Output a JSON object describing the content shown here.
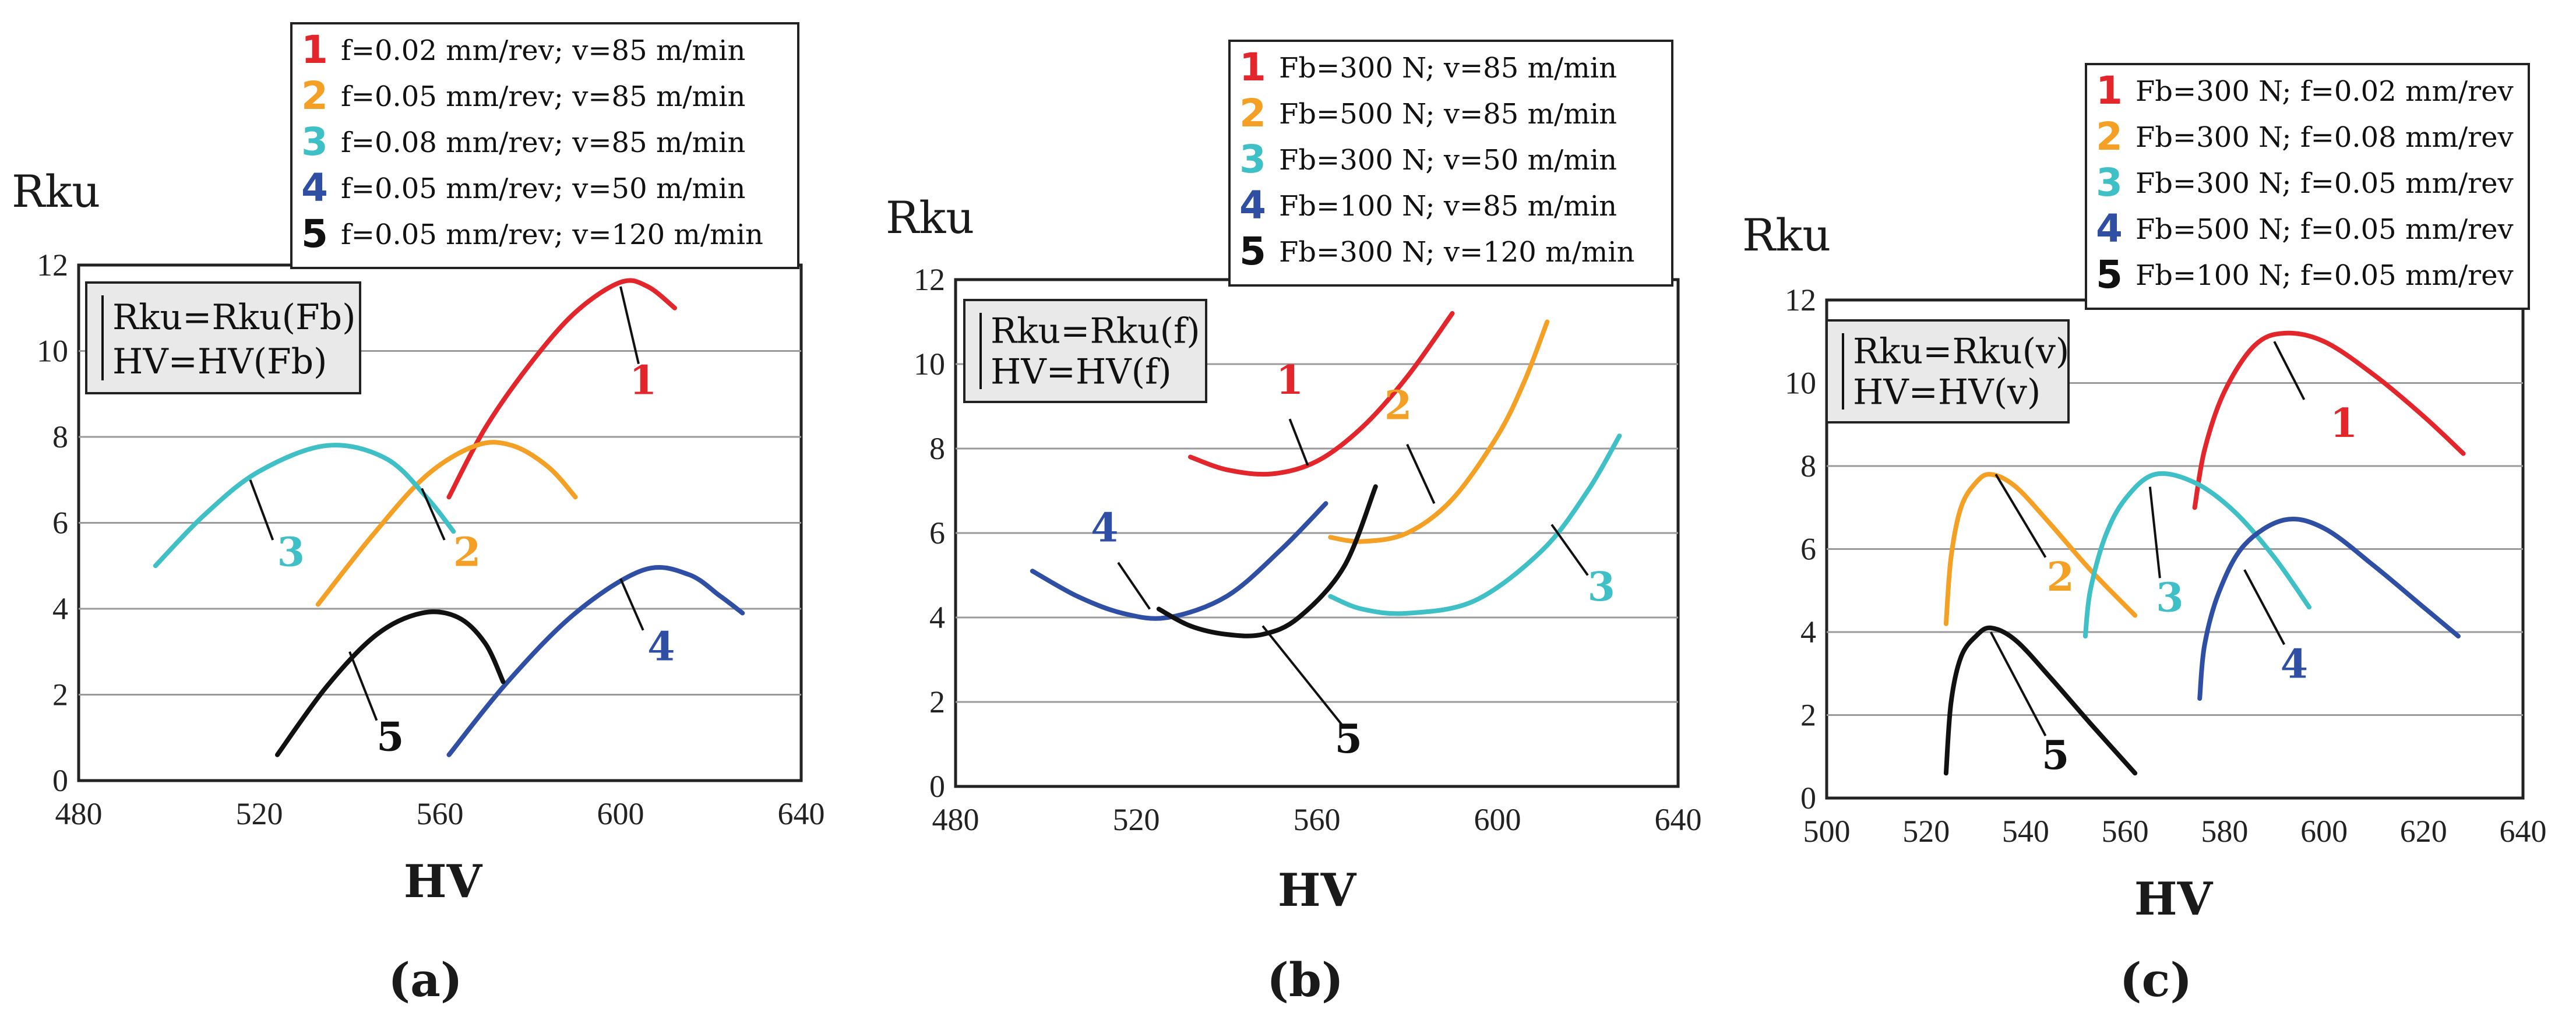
{
  "colors": {
    "1": "#e3262b",
    "2": "#f4a024",
    "3": "#3fbfc6",
    "4": "#2e4fa3",
    "5": "#111111",
    "grid": "#9a9a9a",
    "box_bg": "#e9e9e9"
  },
  "chart_data": [
    {
      "type": "line",
      "panel": "(a)",
      "xlabel": "HV",
      "ylabel": "Rku",
      "xlim": [
        480,
        640
      ],
      "ylim": [
        0,
        12
      ],
      "xticks": [
        "480",
        "520",
        "560",
        "600",
        "640"
      ],
      "yticks": [
        "0",
        "2",
        "4",
        "6",
        "8",
        "10",
        "12"
      ],
      "grid": "horizontal",
      "formula": [
        "Rku=Rku(Fb)",
        "HV=HV(Fb)"
      ],
      "legend": [
        {
          "num": "1",
          "text": "f=0.02 mm/rev; v=85 m/min"
        },
        {
          "num": "2",
          "text": "f=0.05 mm/rev; v=85 m/min"
        },
        {
          "num": "3",
          "text": "f=0.08 mm/rev; v=85 m/min"
        },
        {
          "num": "4",
          "text": "f=0.05 mm/rev; v=50 m/min"
        },
        {
          "num": "5",
          "text": "f=0.05 mm/rev; v=120 m/min"
        }
      ],
      "series": [
        {
          "name": "1",
          "x": [
            562,
            570,
            580,
            590,
            600,
            606,
            612
          ],
          "y": [
            6.6,
            8.2,
            9.7,
            10.9,
            11.6,
            11.5,
            11.0
          ]
        },
        {
          "name": "2",
          "x": [
            533,
            545,
            557,
            568,
            576,
            584,
            590
          ],
          "y": [
            4.1,
            5.7,
            7.1,
            7.8,
            7.8,
            7.3,
            6.6
          ]
        },
        {
          "name": "3",
          "x": [
            497,
            508,
            520,
            535,
            548,
            557,
            563
          ],
          "y": [
            5.0,
            6.2,
            7.2,
            7.8,
            7.5,
            6.6,
            5.8
          ]
        },
        {
          "name": "4",
          "x": [
            562,
            575,
            590,
            605,
            615,
            622,
            627
          ],
          "y": [
            0.6,
            2.3,
            3.9,
            4.9,
            4.8,
            4.3,
            3.9
          ]
        },
        {
          "name": "5",
          "x": [
            524,
            535,
            546,
            556,
            564,
            570,
            574
          ],
          "y": [
            0.6,
            2.2,
            3.4,
            3.9,
            3.8,
            3.2,
            2.3
          ]
        }
      ],
      "labels": [
        {
          "num": "1",
          "x": 605,
          "y": 9.0
        },
        {
          "num": "2",
          "x": 566,
          "y": 5.0
        },
        {
          "num": "3",
          "x": 527,
          "y": 5.0
        },
        {
          "num": "4",
          "x": 609,
          "y": 2.8
        },
        {
          "num": "5",
          "x": 549,
          "y": 0.7
        }
      ],
      "leaders": [
        {
          "x1": 600,
          "y1": 11.5,
          "x2": 604,
          "y2": 9.7
        },
        {
          "x1": 556,
          "y1": 6.8,
          "x2": 561,
          "y2": 5.6
        },
        {
          "x1": 518,
          "y1": 7.0,
          "x2": 523,
          "y2": 5.6
        },
        {
          "x1": 600,
          "y1": 4.7,
          "x2": 605,
          "y2": 3.5
        },
        {
          "x1": 540,
          "y1": 3.0,
          "x2": 546,
          "y2": 1.4
        }
      ]
    },
    {
      "type": "line",
      "panel": "(b)",
      "xlabel": "HV",
      "ylabel": "Rku",
      "xlim": [
        480,
        640
      ],
      "ylim": [
        0,
        12
      ],
      "xticks": [
        "480",
        "520",
        "560",
        "600",
        "640"
      ],
      "yticks": [
        "0",
        "2",
        "4",
        "6",
        "8",
        "10",
        "12"
      ],
      "grid": "horizontal",
      "formula": [
        "Rku=Rku(f)",
        "HV=HV(f)"
      ],
      "legend": [
        {
          "num": "1",
          "text": "Fb=300 N; v=85 m/min"
        },
        {
          "num": "2",
          "text": "Fb=500 N; v=85 m/min"
        },
        {
          "num": "3",
          "text": "Fb=300 N; v=50 m/min"
        },
        {
          "num": "4",
          "text": "Fb=100 N; v=85 m/min"
        },
        {
          "num": "5",
          "text": "Fb=300 N; v=120 m/min"
        }
      ],
      "series": [
        {
          "name": "1",
          "x": [
            532,
            540,
            550,
            560,
            570,
            580,
            590
          ],
          "y": [
            7.8,
            7.5,
            7.4,
            7.7,
            8.5,
            9.7,
            11.2
          ]
        },
        {
          "name": "2",
          "x": [
            563,
            570,
            580,
            590,
            600,
            606,
            611
          ],
          "y": [
            5.9,
            5.8,
            6.0,
            6.8,
            8.3,
            9.6,
            11.0
          ]
        },
        {
          "name": "3",
          "x": [
            563,
            570,
            580,
            595,
            610,
            620,
            627
          ],
          "y": [
            4.5,
            4.2,
            4.1,
            4.4,
            5.6,
            7.0,
            8.3
          ]
        },
        {
          "name": "4",
          "x": [
            497,
            507,
            517,
            527,
            540,
            552,
            562
          ],
          "y": [
            5.1,
            4.5,
            4.1,
            4.0,
            4.5,
            5.6,
            6.7
          ]
        },
        {
          "name": "5",
          "x": [
            525,
            532,
            540,
            548,
            556,
            566,
            573
          ],
          "y": [
            4.2,
            3.8,
            3.6,
            3.6,
            4.0,
            5.2,
            7.1
          ]
        }
      ],
      "labels": [
        {
          "num": "1",
          "x": 554,
          "y": 9.3
        },
        {
          "num": "2",
          "x": 578,
          "y": 8.7
        },
        {
          "num": "3",
          "x": 623,
          "y": 4.4
        },
        {
          "num": "4",
          "x": 513,
          "y": 5.8
        },
        {
          "num": "5",
          "x": 567,
          "y": 0.8
        }
      ],
      "leaders": [
        {
          "x1": 558,
          "y1": 7.6,
          "x2": 554,
          "y2": 8.7
        },
        {
          "x1": 586,
          "y1": 6.7,
          "x2": 580,
          "y2": 8.1
        },
        {
          "x1": 612,
          "y1": 6.2,
          "x2": 620,
          "y2": 5.0
        },
        {
          "x1": 523,
          "y1": 4.2,
          "x2": 516,
          "y2": 5.3
        },
        {
          "x1": 548,
          "y1": 3.8,
          "x2": 566,
          "y2": 1.4
        }
      ]
    },
    {
      "type": "line",
      "panel": "(c)",
      "xlabel": "HV",
      "ylabel": "Rku",
      "xlim": [
        500,
        640
      ],
      "ylim": [
        0,
        12
      ],
      "xticks": [
        "500",
        "520",
        "540",
        "560",
        "580",
        "600",
        "620",
        "640"
      ],
      "yticks": [
        "0",
        "2",
        "4",
        "6",
        "8",
        "10",
        "12"
      ],
      "grid": "horizontal",
      "formula": [
        "Rku=Rku(v)",
        "HV=HV(v)"
      ],
      "legend": [
        {
          "num": "1",
          "text": "Fb=300 N; f=0.02 mm/rev"
        },
        {
          "num": "2",
          "text": "Fb=300 N; f=0.08 mm/rev"
        },
        {
          "num": "3",
          "text": "Fb=300 N; f=0.05 mm/rev"
        },
        {
          "num": "4",
          "text": "Fb=500 N; f=0.05 mm/rev"
        },
        {
          "num": "5",
          "text": "Fb=100 N; f=0.05 mm/rev"
        }
      ],
      "series": [
        {
          "name": "1",
          "x": [
            574,
            576,
            580,
            586,
            592,
            600,
            610,
            620,
            628
          ],
          "y": [
            7.0,
            8.4,
            9.8,
            10.9,
            11.2,
            11.0,
            10.2,
            9.2,
            8.3
          ]
        },
        {
          "name": "2",
          "x": [
            524,
            525,
            527,
            530,
            533,
            538,
            545,
            553,
            562
          ],
          "y": [
            4.2,
            5.8,
            7.0,
            7.6,
            7.8,
            7.5,
            6.6,
            5.5,
            4.4
          ]
        },
        {
          "name": "3",
          "x": [
            552,
            553,
            556,
            560,
            566,
            574,
            582,
            590,
            597
          ],
          "y": [
            3.9,
            5.0,
            6.3,
            7.2,
            7.8,
            7.6,
            6.9,
            5.8,
            4.6
          ]
        },
        {
          "name": "4",
          "x": [
            575,
            576,
            579,
            584,
            592,
            600,
            610,
            620,
            627
          ],
          "y": [
            2.4,
            3.7,
            5.0,
            6.1,
            6.7,
            6.5,
            5.6,
            4.6,
            3.9
          ]
        },
        {
          "name": "5",
          "x": [
            524,
            525,
            527,
            530,
            533,
            538,
            545,
            553,
            562
          ],
          "y": [
            0.6,
            2.3,
            3.4,
            3.9,
            4.1,
            3.8,
            2.9,
            1.8,
            0.6
          ]
        }
      ],
      "labels": [
        {
          "num": "1",
          "x": 604,
          "y": 8.7
        },
        {
          "num": "2",
          "x": 547,
          "y": 5.0
        },
        {
          "num": "3",
          "x": 569,
          "y": 4.5
        },
        {
          "num": "4",
          "x": 594,
          "y": 2.9
        },
        {
          "num": "5",
          "x": 546,
          "y": 0.7
        }
      ],
      "leaders": [
        {
          "x1": 590,
          "y1": 11.0,
          "x2": 596,
          "y2": 9.6
        },
        {
          "x1": 534,
          "y1": 7.8,
          "x2": 544,
          "y2": 5.8
        },
        {
          "x1": 565,
          "y1": 7.5,
          "x2": 567,
          "y2": 5.3
        },
        {
          "x1": 584,
          "y1": 5.5,
          "x2": 592,
          "y2": 3.7
        },
        {
          "x1": 533,
          "y1": 4.0,
          "x2": 544,
          "y2": 1.5
        }
      ]
    }
  ]
}
